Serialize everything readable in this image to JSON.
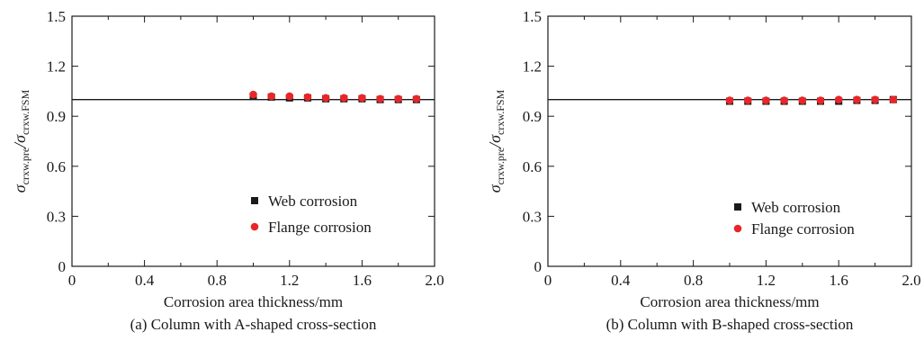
{
  "colors": {
    "web": "#1a1a1a",
    "flange": "#e8262a",
    "axis": "#1a1a1a",
    "ref_line": "#1a1a1a"
  },
  "chart_data": [
    {
      "type": "scatter",
      "caption": "(a) Column with A-shaped cross-section",
      "xlabel": "Corrosion area thickness/mm",
      "ylabel_main": "σ",
      "ylabel_sub1": "crxw.pre",
      "ylabel_slash": "/σ",
      "ylabel_sub2": "crxw.FSM",
      "xlim": [
        0,
        2.0
      ],
      "ylim": [
        0,
        1.5
      ],
      "xticks": [
        0,
        0.2,
        0.4,
        0.6,
        0.8,
        1.0,
        1.2,
        1.4,
        1.6,
        1.8,
        2.0
      ],
      "xtick_labels": [
        "0",
        "0.2",
        "0.4",
        "0.6",
        "0.8",
        "1.0",
        "1.2",
        "1.4",
        "1.6",
        "1.8",
        "2.0"
      ],
      "yticks": [
        0,
        0.3,
        0.6,
        0.9,
        1.2,
        1.5
      ],
      "ytick_labels": [
        "0",
        "0.3",
        "0.6",
        "0.9",
        "1.2",
        "1.5"
      ],
      "reference_line_y": 1.0,
      "legend_position": "lower-right",
      "series": [
        {
          "name": "Web corrosion",
          "marker": "square",
          "color": "#1a1a1a",
          "x": [
            1.0,
            1.1,
            1.2,
            1.3,
            1.4,
            1.5,
            1.6,
            1.7,
            1.8,
            1.9
          ],
          "y": [
            1.02,
            1.015,
            1.01,
            1.01,
            1.005,
            1.005,
            1.005,
            1.0,
            1.0,
            1.0
          ]
        },
        {
          "name": "Flange corrosion",
          "marker": "circle",
          "color": "#e8262a",
          "x": [
            1.0,
            1.1,
            1.2,
            1.3,
            1.4,
            1.5,
            1.6,
            1.7,
            1.8,
            1.9
          ],
          "y": [
            1.03,
            1.02,
            1.02,
            1.015,
            1.01,
            1.01,
            1.01,
            1.005,
            1.005,
            1.005
          ]
        }
      ]
    },
    {
      "type": "scatter",
      "caption": "(b) Column with B-shaped cross-section",
      "xlabel": "Corrosion area thickness/mm",
      "ylabel_main": "σ",
      "ylabel_sub1": "crxw.pre",
      "ylabel_slash": "/σ",
      "ylabel_sub2": "crxw.FSM",
      "xlim": [
        0,
        2.0
      ],
      "ylim": [
        0,
        1.5
      ],
      "xticks": [
        0,
        0.2,
        0.4,
        0.6,
        0.8,
        1.0,
        1.2,
        1.4,
        1.6,
        1.8,
        2.0
      ],
      "xtick_labels": [
        "0",
        "0.2",
        "0.4",
        "0.6",
        "0.8",
        "1.0",
        "1.2",
        "1.4",
        "1.6",
        "1.8",
        "2.0"
      ],
      "yticks": [
        0,
        0.3,
        0.6,
        0.9,
        1.2,
        1.5
      ],
      "ytick_labels": [
        "0",
        "0.3",
        "0.6",
        "0.9",
        "1.2",
        "1.5"
      ],
      "reference_line_y": 1.0,
      "legend_position": "lower-right",
      "series": [
        {
          "name": "Web corrosion",
          "marker": "square",
          "color": "#1a1a1a",
          "x": [
            1.0,
            1.1,
            1.2,
            1.3,
            1.4,
            1.5,
            1.6,
            1.7,
            1.8,
            1.9
          ],
          "y": [
            0.99,
            0.99,
            0.99,
            0.99,
            0.99,
            0.99,
            0.99,
            0.995,
            0.995,
            1.0
          ]
        },
        {
          "name": "Flange corrosion",
          "marker": "circle",
          "color": "#e8262a",
          "x": [
            1.0,
            1.1,
            1.2,
            1.3,
            1.4,
            1.5,
            1.6,
            1.7,
            1.8,
            1.9
          ],
          "y": [
            0.995,
            0.995,
            0.995,
            0.995,
            0.995,
            0.995,
            1.0,
            1.0,
            1.0,
            1.0
          ]
        }
      ]
    }
  ]
}
